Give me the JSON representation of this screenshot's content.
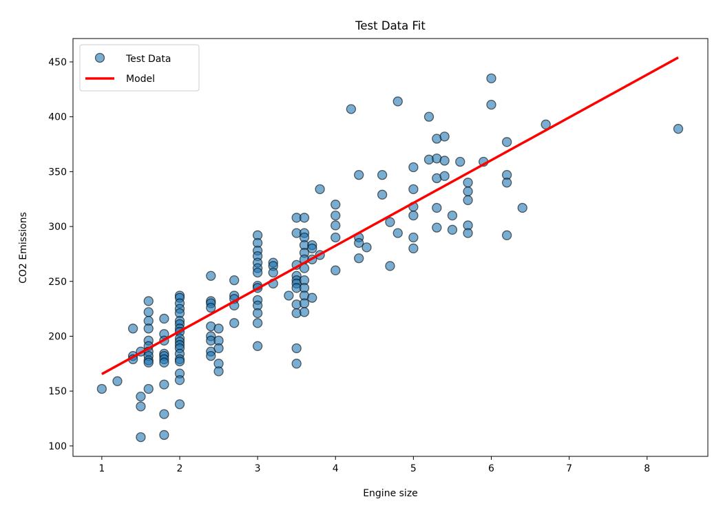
{
  "chart_data": {
    "type": "scatter",
    "title": "Test Data Fit",
    "xlabel": "Engine size",
    "ylabel": "CO2 Emissions",
    "xlim": [
      0.63,
      8.78
    ],
    "ylim": [
      90.5,
      471.3
    ],
    "xticks": [
      1,
      2,
      3,
      4,
      5,
      6,
      7,
      8
    ],
    "yticks": [
      100,
      150,
      200,
      250,
      300,
      350,
      400,
      450
    ],
    "grid": false,
    "legend_placement": "top-left",
    "colors": {
      "points": "#1f77b4",
      "point_edge": "#000000",
      "model": "#ff0000"
    },
    "series": [
      {
        "name": "Test Data",
        "kind": "scatter",
        "points": [
          [
            1.0,
            152
          ],
          [
            1.2,
            159
          ],
          [
            1.4,
            207
          ],
          [
            1.4,
            182
          ],
          [
            1.4,
            179
          ],
          [
            1.5,
            186
          ],
          [
            1.5,
            145
          ],
          [
            1.5,
            136
          ],
          [
            1.5,
            108
          ],
          [
            1.6,
            232
          ],
          [
            1.6,
            222
          ],
          [
            1.6,
            214
          ],
          [
            1.6,
            207
          ],
          [
            1.6,
            196
          ],
          [
            1.6,
            191
          ],
          [
            1.6,
            186
          ],
          [
            1.6,
            182
          ],
          [
            1.6,
            178
          ],
          [
            1.6,
            176
          ],
          [
            1.6,
            152
          ],
          [
            1.8,
            216
          ],
          [
            1.8,
            202
          ],
          [
            1.8,
            196
          ],
          [
            1.8,
            184
          ],
          [
            1.8,
            182
          ],
          [
            1.8,
            179
          ],
          [
            1.8,
            176
          ],
          [
            1.8,
            156
          ],
          [
            1.8,
            129
          ],
          [
            1.8,
            110
          ],
          [
            2.0,
            237
          ],
          [
            2.0,
            235
          ],
          [
            2.0,
            230
          ],
          [
            2.0,
            225
          ],
          [
            2.0,
            221
          ],
          [
            2.0,
            214
          ],
          [
            2.0,
            211
          ],
          [
            2.0,
            207
          ],
          [
            2.0,
            204
          ],
          [
            2.0,
            198
          ],
          [
            2.0,
            195
          ],
          [
            2.0,
            192
          ],
          [
            2.0,
            189
          ],
          [
            2.0,
            184
          ],
          [
            2.0,
            179
          ],
          [
            2.0,
            177
          ],
          [
            2.0,
            166
          ],
          [
            2.0,
            160
          ],
          [
            2.0,
            138
          ],
          [
            2.4,
            255
          ],
          [
            2.4,
            232
          ],
          [
            2.4,
            230
          ],
          [
            2.4,
            226
          ],
          [
            2.4,
            209
          ],
          [
            2.4,
            200
          ],
          [
            2.4,
            196
          ],
          [
            2.4,
            186
          ],
          [
            2.4,
            182
          ],
          [
            2.5,
            207
          ],
          [
            2.5,
            196
          ],
          [
            2.5,
            189
          ],
          [
            2.5,
            175
          ],
          [
            2.5,
            168
          ],
          [
            2.7,
            251
          ],
          [
            2.7,
            237
          ],
          [
            2.7,
            234
          ],
          [
            2.7,
            228
          ],
          [
            2.7,
            212
          ],
          [
            3.0,
            292
          ],
          [
            3.0,
            285
          ],
          [
            3.0,
            278
          ],
          [
            3.0,
            273
          ],
          [
            3.0,
            267
          ],
          [
            3.0,
            262
          ],
          [
            3.0,
            258
          ],
          [
            3.0,
            246
          ],
          [
            3.0,
            244
          ],
          [
            3.0,
            233
          ],
          [
            3.0,
            228
          ],
          [
            3.0,
            221
          ],
          [
            3.0,
            212
          ],
          [
            3.0,
            191
          ],
          [
            3.2,
            267
          ],
          [
            3.2,
            264
          ],
          [
            3.2,
            258
          ],
          [
            3.2,
            248
          ],
          [
            3.4,
            237
          ],
          [
            3.5,
            308
          ],
          [
            3.5,
            294
          ],
          [
            3.5,
            265
          ],
          [
            3.5,
            255
          ],
          [
            3.5,
            251
          ],
          [
            3.5,
            248
          ],
          [
            3.5,
            244
          ],
          [
            3.5,
            229
          ],
          [
            3.5,
            221
          ],
          [
            3.5,
            189
          ],
          [
            3.5,
            175
          ],
          [
            3.6,
            308
          ],
          [
            3.6,
            294
          ],
          [
            3.6,
            290
          ],
          [
            3.6,
            283
          ],
          [
            3.6,
            276
          ],
          [
            3.6,
            270
          ],
          [
            3.6,
            262
          ],
          [
            3.6,
            251
          ],
          [
            3.6,
            244
          ],
          [
            3.6,
            237
          ],
          [
            3.6,
            230
          ],
          [
            3.6,
            222
          ],
          [
            3.7,
            283
          ],
          [
            3.7,
            280
          ],
          [
            3.7,
            270
          ],
          [
            3.7,
            235
          ],
          [
            3.8,
            334
          ],
          [
            3.8,
            274
          ],
          [
            4.0,
            320
          ],
          [
            4.0,
            310
          ],
          [
            4.0,
            301
          ],
          [
            4.0,
            290
          ],
          [
            4.0,
            260
          ],
          [
            4.2,
            407
          ],
          [
            4.3,
            347
          ],
          [
            4.3,
            290
          ],
          [
            4.3,
            285
          ],
          [
            4.3,
            271
          ],
          [
            4.4,
            281
          ],
          [
            4.6,
            347
          ],
          [
            4.6,
            329
          ],
          [
            4.7,
            304
          ],
          [
            4.7,
            264
          ],
          [
            4.8,
            414
          ],
          [
            4.8,
            294
          ],
          [
            5.0,
            354
          ],
          [
            5.0,
            334
          ],
          [
            5.0,
            318
          ],
          [
            5.0,
            310
          ],
          [
            5.0,
            290
          ],
          [
            5.0,
            280
          ],
          [
            5.2,
            400
          ],
          [
            5.2,
            361
          ],
          [
            5.3,
            380
          ],
          [
            5.3,
            362
          ],
          [
            5.3,
            344
          ],
          [
            5.3,
            317
          ],
          [
            5.3,
            299
          ],
          [
            5.4,
            382
          ],
          [
            5.4,
            360
          ],
          [
            5.4,
            346
          ],
          [
            5.5,
            310
          ],
          [
            5.5,
            297
          ],
          [
            5.6,
            359
          ],
          [
            5.7,
            340
          ],
          [
            5.7,
            332
          ],
          [
            5.7,
            324
          ],
          [
            5.7,
            301
          ],
          [
            5.7,
            294
          ],
          [
            5.9,
            359
          ],
          [
            6.0,
            435
          ],
          [
            6.0,
            411
          ],
          [
            6.2,
            377
          ],
          [
            6.2,
            347
          ],
          [
            6.2,
            340
          ],
          [
            6.2,
            292
          ],
          [
            6.4,
            317
          ],
          [
            6.7,
            393
          ],
          [
            8.4,
            389
          ]
        ]
      },
      {
        "name": "Model",
        "kind": "line",
        "points": [
          [
            1.0,
            165.5
          ],
          [
            8.4,
            454
          ]
        ]
      }
    ]
  }
}
